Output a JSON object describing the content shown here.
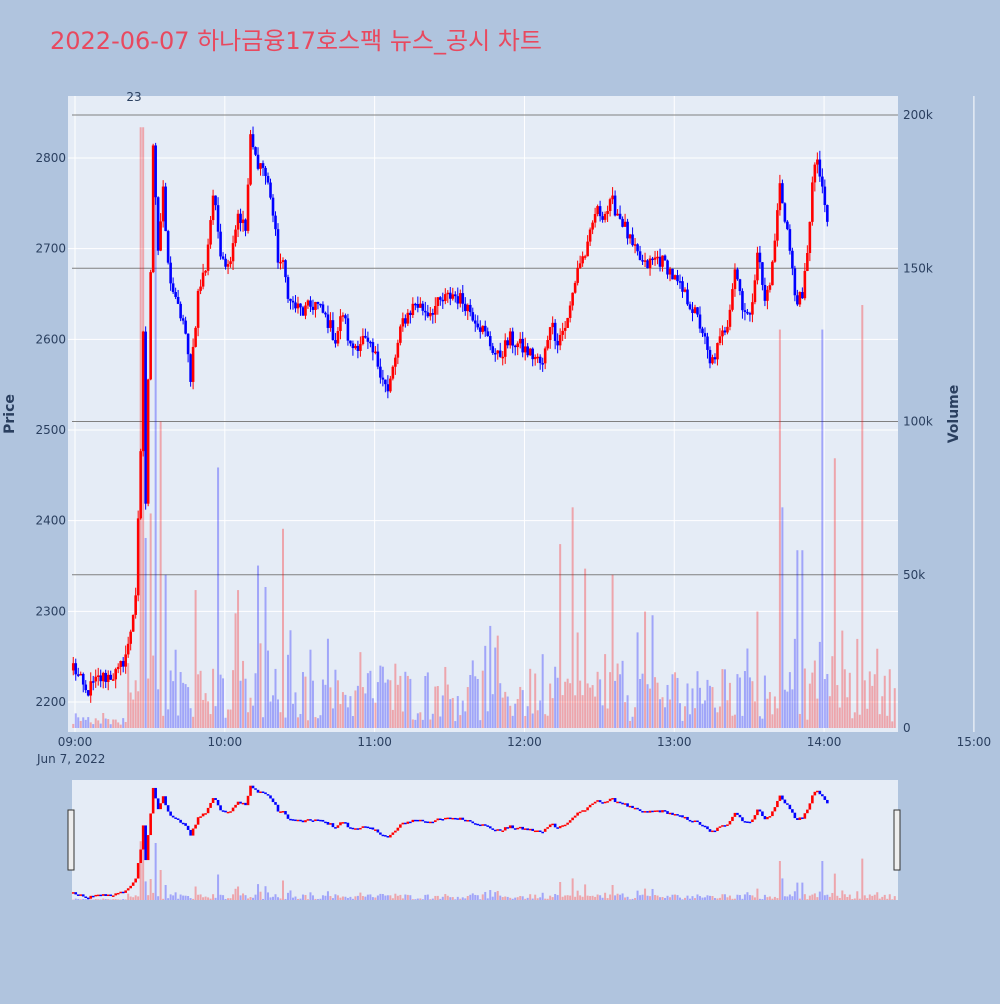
{
  "title": "2022-06-07 하나금융17호스팩 뉴스_공시 차트",
  "colors": {
    "background": "#b0c4de",
    "plot_bg": "#e5ecf6",
    "title": "#e8495f",
    "up": "#ff0000",
    "down": "#0000ff",
    "hline": "#808080",
    "grid": "#ffffff"
  },
  "chart_data": {
    "type": "candlestick",
    "date_label": "Jun 7, 2022",
    "ylabel": "Price",
    "y2label": "Volume",
    "annotation": "23",
    "price_ticks": [
      "2200",
      "2300",
      "2400",
      "2500",
      "2600",
      "2700",
      "2800"
    ],
    "volume_ticks": [
      "0",
      "50k",
      "100k",
      "150k",
      "200k"
    ],
    "time_ticks": [
      "09:00",
      "10:00",
      "11:00",
      "12:00",
      "13:00",
      "14:00",
      "15:00"
    ],
    "ylim": [
      2170,
      2850
    ],
    "y2lim": [
      0,
      200000
    ],
    "hlines_volume": [
      50000,
      100000,
      150000,
      200000
    ],
    "rangeslider": true,
    "keypoints": [
      [
        0,
        2240
      ],
      [
        5,
        2210
      ],
      [
        10,
        2225
      ],
      [
        18,
        2232
      ],
      [
        22,
        2260
      ],
      [
        25,
        2320
      ],
      [
        27,
        2470
      ],
      [
        28,
        2610
      ],
      [
        29,
        2420
      ],
      [
        31,
        2680
      ],
      [
        32,
        2820
      ],
      [
        34,
        2700
      ],
      [
        36,
        2760
      ],
      [
        38,
        2680
      ],
      [
        41,
        2640
      ],
      [
        44,
        2620
      ],
      [
        47,
        2560
      ],
      [
        50,
        2650
      ],
      [
        53,
        2680
      ],
      [
        56,
        2760
      ],
      [
        59,
        2700
      ],
      [
        62,
        2680
      ],
      [
        66,
        2740
      ],
      [
        69,
        2720
      ],
      [
        71,
        2820
      ],
      [
        73,
        2800
      ],
      [
        76,
        2790
      ],
      [
        79,
        2760
      ],
      [
        82,
        2690
      ],
      [
        84,
        2680
      ],
      [
        87,
        2640
      ],
      [
        92,
        2630
      ],
      [
        97,
        2640
      ],
      [
        102,
        2620
      ],
      [
        105,
        2600
      ],
      [
        108,
        2630
      ],
      [
        111,
        2590
      ],
      [
        116,
        2600
      ],
      [
        121,
        2580
      ],
      [
        124,
        2560
      ],
      [
        126,
        2540
      ],
      [
        129,
        2580
      ],
      [
        132,
        2620
      ],
      [
        137,
        2640
      ],
      [
        142,
        2630
      ],
      [
        147,
        2640
      ],
      [
        152,
        2650
      ],
      [
        157,
        2640
      ],
      [
        162,
        2620
      ],
      [
        166,
        2600
      ],
      [
        170,
        2580
      ],
      [
        175,
        2600
      ],
      [
        180,
        2590
      ],
      [
        185,
        2580
      ],
      [
        188,
        2570
      ],
      [
        191,
        2620
      ],
      [
        194,
        2600
      ],
      [
        198,
        2620
      ],
      [
        202,
        2680
      ],
      [
        206,
        2700
      ],
      [
        209,
        2740
      ],
      [
        213,
        2740
      ],
      [
        216,
        2750
      ],
      [
        220,
        2730
      ],
      [
        224,
        2700
      ],
      [
        229,
        2680
      ],
      [
        234,
        2690
      ],
      [
        238,
        2680
      ],
      [
        242,
        2660
      ],
      [
        247,
        2640
      ],
      [
        252,
        2610
      ],
      [
        255,
        2570
      ],
      [
        258,
        2590
      ],
      [
        262,
        2620
      ],
      [
        265,
        2680
      ],
      [
        268,
        2640
      ],
      [
        271,
        2620
      ],
      [
        274,
        2700
      ],
      [
        277,
        2640
      ],
      [
        280,
        2680
      ],
      [
        283,
        2770
      ],
      [
        286,
        2720
      ],
      [
        289,
        2650
      ],
      [
        292,
        2640
      ],
      [
        294,
        2700
      ],
      [
        296,
        2770
      ],
      [
        298,
        2800
      ],
      [
        300,
        2760
      ],
      [
        302,
        2730
      ]
    ],
    "volume_spikes": [
      [
        27,
        196000
      ],
      [
        28,
        196000
      ],
      [
        29,
        62000
      ],
      [
        31,
        70000
      ],
      [
        33,
        190000
      ],
      [
        35,
        100000
      ],
      [
        37,
        50000
      ],
      [
        49,
        45000
      ],
      [
        58,
        85000
      ],
      [
        66,
        45000
      ],
      [
        74,
        53000
      ],
      [
        77,
        46000
      ],
      [
        84,
        65000
      ],
      [
        124,
        20000
      ],
      [
        195,
        60000
      ],
      [
        200,
        72000
      ],
      [
        205,
        52000
      ],
      [
        216,
        50000
      ],
      [
        229,
        38000
      ],
      [
        274,
        38000
      ],
      [
        283,
        130000
      ],
      [
        284,
        72000
      ],
      [
        290,
        58000
      ],
      [
        292,
        58000
      ],
      [
        300,
        130000
      ],
      [
        305,
        88000
      ],
      [
        316,
        138000
      ]
    ]
  }
}
